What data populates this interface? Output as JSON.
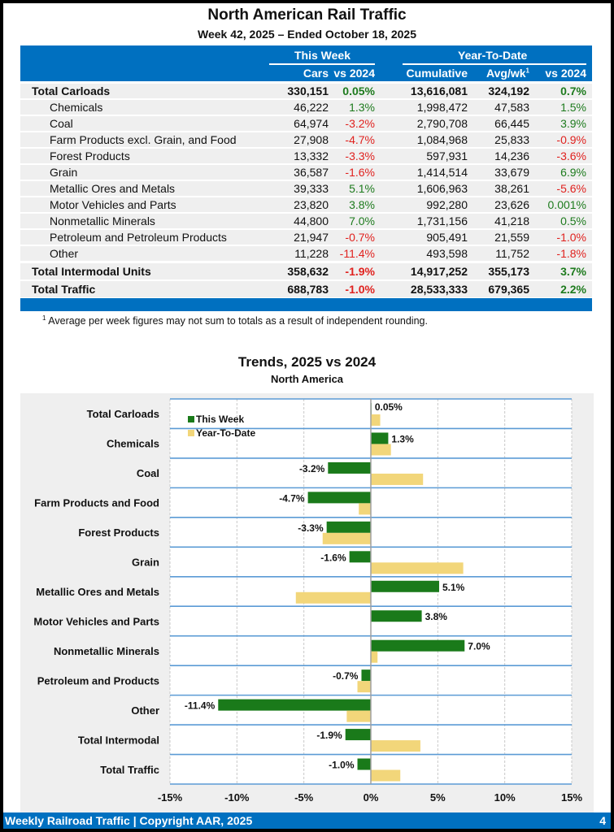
{
  "header": {
    "title": "North American Rail Traffic",
    "subtitle": "Week 42, 2025 – Ended October 18, 2025"
  },
  "table": {
    "group_this_week": "This Week",
    "group_ytd": "Year-To-Date",
    "columns": [
      "Cars",
      "vs 2024",
      "Cumulative",
      "Avg/wk",
      "vs 2024"
    ],
    "avg_footnote_marker": "1",
    "rows": [
      {
        "label": "Total Carloads",
        "bold": true,
        "cars": "330,151",
        "vs_week": "0.05%",
        "cumulative": "13,616,081",
        "avg": "324,192",
        "vs_ytd": "0.7%"
      },
      {
        "label": "Chemicals",
        "bold": false,
        "cars": "46,222",
        "vs_week": "1.3%",
        "cumulative": "1,998,472",
        "avg": "47,583",
        "vs_ytd": "1.5%"
      },
      {
        "label": "Coal",
        "bold": false,
        "cars": "64,974",
        "vs_week": "-3.2%",
        "cumulative": "2,790,708",
        "avg": "66,445",
        "vs_ytd": "3.9%"
      },
      {
        "label": "Farm Products excl. Grain, and Food",
        "bold": false,
        "cars": "27,908",
        "vs_week": "-4.7%",
        "cumulative": "1,084,968",
        "avg": "25,833",
        "vs_ytd": "-0.9%"
      },
      {
        "label": "Forest Products",
        "bold": false,
        "cars": "13,332",
        "vs_week": "-3.3%",
        "cumulative": "597,931",
        "avg": "14,236",
        "vs_ytd": "-3.6%"
      },
      {
        "label": "Grain",
        "bold": false,
        "cars": "36,587",
        "vs_week": "-1.6%",
        "cumulative": "1,414,514",
        "avg": "33,679",
        "vs_ytd": "6.9%"
      },
      {
        "label": "Metallic Ores and Metals",
        "bold": false,
        "cars": "39,333",
        "vs_week": "5.1%",
        "cumulative": "1,606,963",
        "avg": "38,261",
        "vs_ytd": "-5.6%"
      },
      {
        "label": "Motor Vehicles and Parts",
        "bold": false,
        "cars": "23,820",
        "vs_week": "3.8%",
        "cumulative": "992,280",
        "avg": "23,626",
        "vs_ytd": "0.001%"
      },
      {
        "label": "Nonmetallic Minerals",
        "bold": false,
        "cars": "44,800",
        "vs_week": "7.0%",
        "cumulative": "1,731,156",
        "avg": "41,218",
        "vs_ytd": "0.5%"
      },
      {
        "label": "Petroleum and Petroleum Products",
        "bold": false,
        "cars": "21,947",
        "vs_week": "-0.7%",
        "cumulative": "905,491",
        "avg": "21,559",
        "vs_ytd": "-1.0%"
      },
      {
        "label": "Other",
        "bold": false,
        "cars": "11,228",
        "vs_week": "-11.4%",
        "cumulative": "493,598",
        "avg": "11,752",
        "vs_ytd": "-1.8%"
      },
      {
        "label": "Total Intermodal Units",
        "bold": true,
        "cars": "358,632",
        "vs_week": "-1.9%",
        "cumulative": "14,917,252",
        "avg": "355,173",
        "vs_ytd": "3.7%"
      },
      {
        "label": "Total Traffic",
        "bold": true,
        "cars": "688,783",
        "vs_week": "-1.0%",
        "cumulative": "28,533,333",
        "avg": "679,365",
        "vs_ytd": "2.2%"
      }
    ]
  },
  "footnote": {
    "marker": "1",
    "text": "Average per week figures may not sum to totals as a result of independent rounding."
  },
  "colors": {
    "brand_blue": "#0070c0",
    "positive": "#1e7b1e",
    "negative": "#e0221f",
    "this_week_bar": "#1a7a1a",
    "ytd_bar": "#f2d67a"
  },
  "chart_data": {
    "type": "bar",
    "orientation": "horizontal",
    "title": "Trends, 2025 vs 2024",
    "subtitle": "North America",
    "categories": [
      "Total Carloads",
      "Chemicals",
      "Coal",
      "Farm Products and Food",
      "Forest Products",
      "Grain",
      "Metallic Ores and Metals",
      "Motor Vehicles and Parts",
      "Nonmetallic Minerals",
      "Petroleum and Products",
      "Other",
      "Total Intermodal",
      "Total Traffic"
    ],
    "series": [
      {
        "name": "This Week",
        "values": [
          0.05,
          1.3,
          -3.2,
          -4.7,
          -3.3,
          -1.6,
          5.1,
          3.8,
          7.0,
          -0.7,
          -11.4,
          -1.9,
          -1.0
        ],
        "labels": [
          "0.05%",
          "1.3%",
          "-3.2%",
          "-4.7%",
          "-3.3%",
          "-1.6%",
          "5.1%",
          "3.8%",
          "7.0%",
          "-0.7%",
          "-11.4%",
          "-1.9%",
          "-1.0%"
        ]
      },
      {
        "name": "Year-To-Date",
        "values": [
          0.7,
          1.5,
          3.9,
          -0.9,
          -3.6,
          6.9,
          -5.6,
          0.001,
          0.5,
          -1.0,
          -1.8,
          3.7,
          2.2
        ]
      }
    ],
    "xlim": [
      -15,
      15
    ],
    "xticks": [
      "-15%",
      "-10%",
      "-5%",
      "0%",
      "5%",
      "10%",
      "15%"
    ],
    "xtick_values": [
      -15,
      -10,
      -5,
      0,
      5,
      10,
      15
    ],
    "legend_position": "top-left",
    "grid": true
  },
  "footer": {
    "left": "Weekly Railroad Traffic | Copyright AAR, 2025",
    "page_number": "4"
  }
}
